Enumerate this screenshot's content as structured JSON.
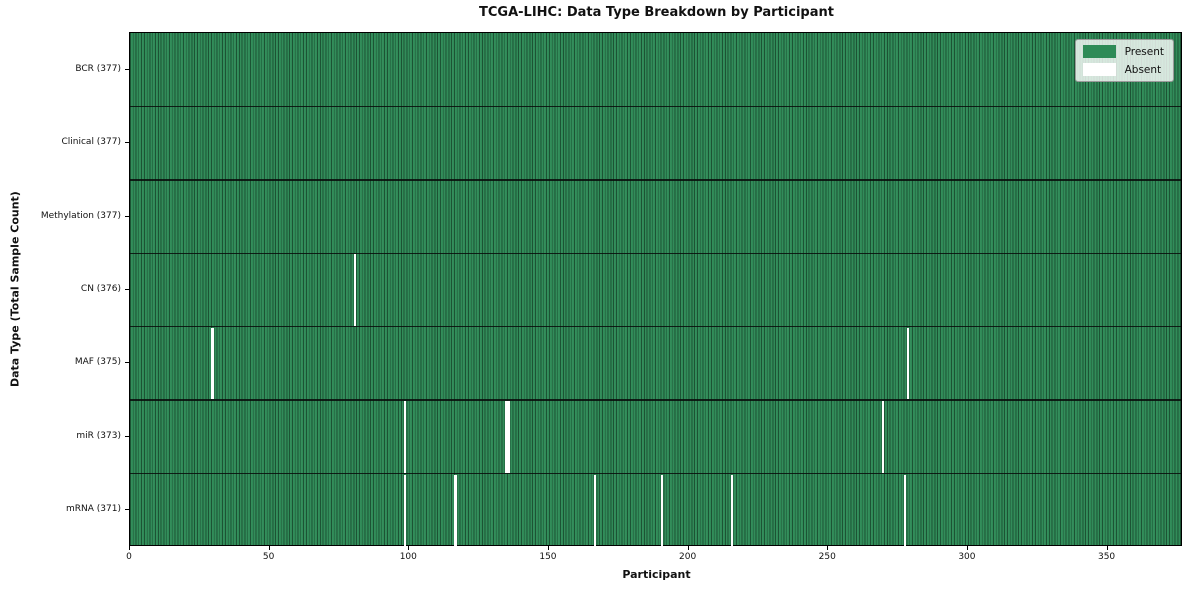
{
  "colors": {
    "present": "#2e8b57",
    "absent": "#ffffff",
    "row_separator": "#0d0d0d",
    "plot_border": "#000000"
  },
  "chart_data": {
    "type": "heatmap",
    "title": "TCGA-LIHC: Data Type Breakdown by Participant",
    "xlabel": "Participant",
    "ylabel": "Data Type (Total Sample Count)",
    "n_participants": 377,
    "xlim": [
      0,
      377
    ],
    "x_ticks": [
      0,
      50,
      100,
      150,
      200,
      250,
      300,
      350
    ],
    "grid": false,
    "legend_position": "upper right",
    "legend": [
      {
        "label": "Present",
        "color": "#2e8b57"
      },
      {
        "label": "Absent",
        "color": "#ffffff"
      }
    ],
    "rows": [
      {
        "label": "BCR (377)",
        "data_type": "BCR",
        "total_count": 377,
        "absent_participants": []
      },
      {
        "label": "Clinical (377)",
        "data_type": "Clinical",
        "total_count": 377,
        "absent_participants": []
      },
      {
        "label": "Methylation (377)",
        "data_type": "Methylation",
        "total_count": 377,
        "absent_participants": []
      },
      {
        "label": "CN (376)",
        "data_type": "CN",
        "total_count": 376,
        "absent_participants": [
          80
        ]
      },
      {
        "label": "MAF (375)",
        "data_type": "MAF",
        "total_count": 375,
        "absent_participants": [
          29,
          278
        ]
      },
      {
        "label": "miR (373)",
        "data_type": "miR",
        "total_count": 373,
        "absent_participants": [
          98,
          134,
          135,
          269
        ]
      },
      {
        "label": "mRNA (371)",
        "data_type": "mRNA",
        "total_count": 371,
        "absent_participants": [
          98,
          116,
          166,
          190,
          215,
          277
        ]
      }
    ]
  }
}
